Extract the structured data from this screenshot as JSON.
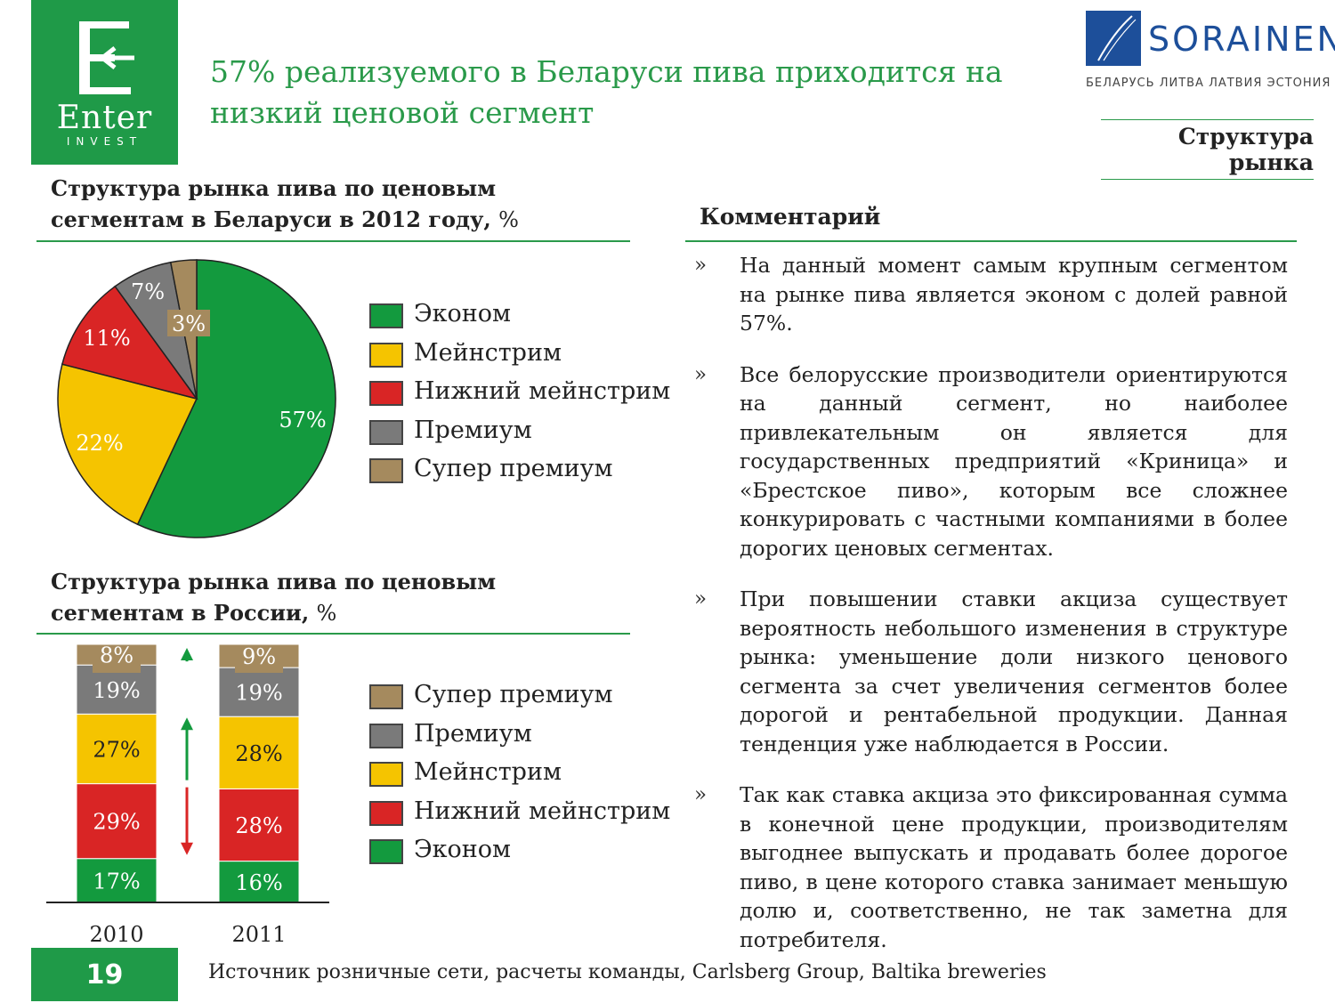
{
  "header": {
    "logo_name": "Enter",
    "logo_sub": "INVEST",
    "headline": " 57% реализуемого в Беларуси пива приходится на низкий ценовой сегмент",
    "sorainen_name": "SORAINEN",
    "sorainen_countries": "БЕЛАРУСЬ ЛИТВА ЛАТВИЯ ЭСТОНИЯ",
    "section": "Структура рынка"
  },
  "colors": {
    "brand_green": "#1f9a48",
    "econom": "#139a3e",
    "mainstream": "#f5c400",
    "lower_mainstream": "#d92525",
    "premium": "#7a7a7a",
    "super_premium": "#a58a5e"
  },
  "chart_data": [
    {
      "type": "pie",
      "title": "Структура рынка пива по ценовым сегментам в Беларуси в 2012 году,",
      "unit": "%",
      "slices": [
        {
          "name": "Эконом",
          "value": 57,
          "label": "57%",
          "color": "#139a3e"
        },
        {
          "name": "Мейнстрим",
          "value": 22,
          "label": "22%",
          "color": "#f5c400"
        },
        {
          "name": "Нижний мейнстрим",
          "value": 11,
          "label": "11%",
          "color": "#d92525"
        },
        {
          "name": "Премиум",
          "value": 7,
          "label": "7%",
          "color": "#7a7a7a"
        },
        {
          "name": "Супер премиум",
          "value": 3,
          "label": "3%",
          "color": "#a58a5e"
        }
      ],
      "legend": [
        "Эконом",
        "Мейнстрим",
        "Нижний мейнстрим",
        "Премиум",
        "Супер премиум"
      ],
      "legend_position": "right"
    },
    {
      "type": "bar",
      "stacked": true,
      "title": "Структура рынка пива по ценовым сегментам в России,",
      "unit": "%",
      "categories": [
        "2010",
        "2011"
      ],
      "series": [
        {
          "name": "Эконом",
          "values": [
            17,
            16
          ],
          "color": "#139a3e"
        },
        {
          "name": "Нижний мейнстрим",
          "values": [
            29,
            28
          ],
          "color": "#d92525"
        },
        {
          "name": "Мейнстрим",
          "values": [
            27,
            28
          ],
          "color": "#f5c400"
        },
        {
          "name": "Премиум",
          "values": [
            19,
            19
          ],
          "color": "#7a7a7a"
        },
        {
          "name": "Супер премиум",
          "values": [
            8,
            9
          ],
          "color": "#a58a5e"
        }
      ],
      "trend_arrows": [
        {
          "series": "Супер премиум",
          "direction": "up",
          "color": "#139a3e"
        },
        {
          "series": "Мейнстрим",
          "direction": "up",
          "color": "#139a3e"
        },
        {
          "series": "Нижний мейнстрим",
          "direction": "down",
          "color": "#d92525"
        }
      ],
      "legend": [
        "Супер премиум",
        "Премиум",
        "Мейнстрим",
        "Нижний мейнстрим",
        "Эконом"
      ],
      "legend_position": "right"
    }
  ],
  "comment": {
    "title": "Комментарий",
    "bullet_mark": "»",
    "items": [
      "На данный момент самым крупным сегментом на рынке пива является эконом с долей равной 57%.",
      "Все белорусские производители ориентируются на данный сегмент, но наиболее привлекательным он является для государственных предприятий «Криница» и «Брестское пиво», которым все сложнее конкурировать с частными компаниями в более дорогих ценовых сегментах.",
      "При повышении ставки акциза существует вероятность небольшого изменения в структуре рынка: уменьшение доли низкого ценового сегмента за счет увеличения сегментов более дорогой и рентабельной продукции. Данная тенденция уже наблюдается в России.",
      "Так как ставка акциза это фиксированная сумма в конечной цене продукции, производителям выгоднее выпускать и продавать более дорогое пиво, в цене которого ставка занимает меньшую долю и, соответственно, не так заметна для потребителя."
    ]
  },
  "footer": {
    "page_number": "19",
    "source": "Источник розничные сети, расчеты команды, Carlsberg Group, Baltika breweries"
  }
}
